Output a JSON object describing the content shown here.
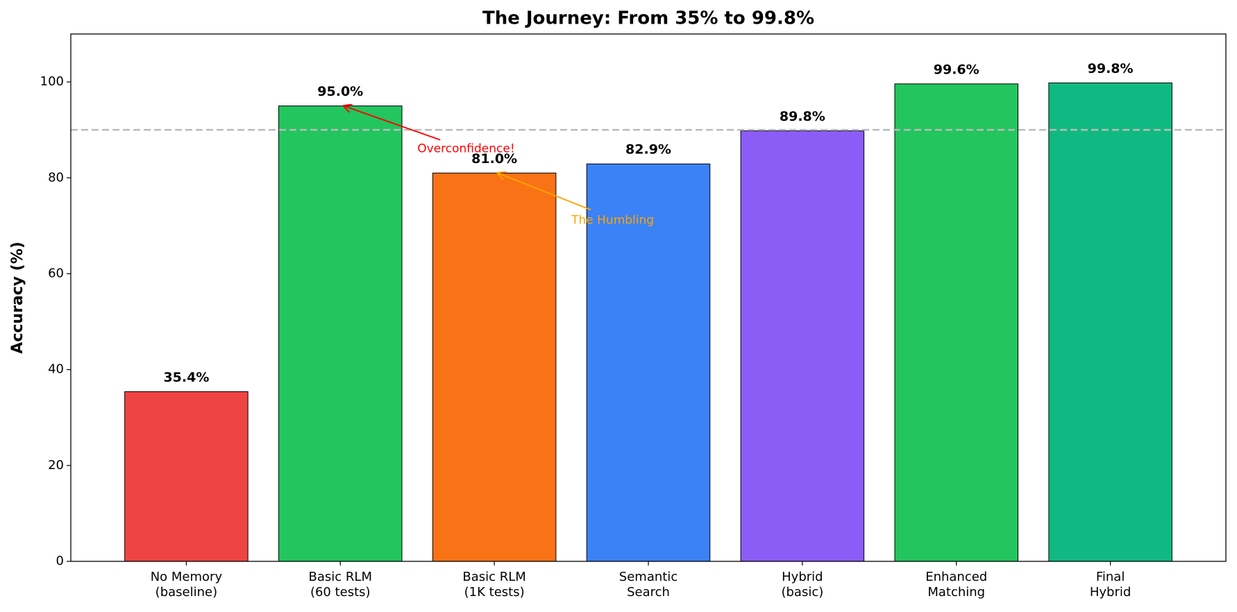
{
  "chart_data": {
    "type": "bar",
    "title": "The Journey: From 35% to 99.8%",
    "y_label": "Accuracy (%)",
    "categories": [
      "No Memory\n(baseline)",
      "Basic RLM\n(60 tests)",
      "Basic RLM\n(1K tests)",
      "Semantic\nSearch",
      "Hybrid\n(basic)",
      "Enhanced\nMatching",
      "Final\nHybrid"
    ],
    "values": [
      35.4,
      95.0,
      81.0,
      82.9,
      89.8,
      99.6,
      99.8
    ],
    "value_labels": [
      "35.4%",
      "95.0%",
      "81.0%",
      "82.9%",
      "89.8%",
      "99.6%",
      "99.8%"
    ],
    "colors": [
      "#ef4444",
      "#22c55e",
      "#f97316",
      "#3b82f6",
      "#8b5cf6",
      "#22c55e",
      "#10b981"
    ],
    "reference_line": 90,
    "annotations": [
      {
        "text": "Overconfidence!",
        "color": "#ff0000"
      },
      {
        "text": "The Humbling",
        "color": "#ffa500"
      }
    ],
    "ylim": [
      0,
      110
    ],
    "yticks": [
      0,
      20,
      40,
      60,
      80,
      100
    ],
    "grid": false
  }
}
